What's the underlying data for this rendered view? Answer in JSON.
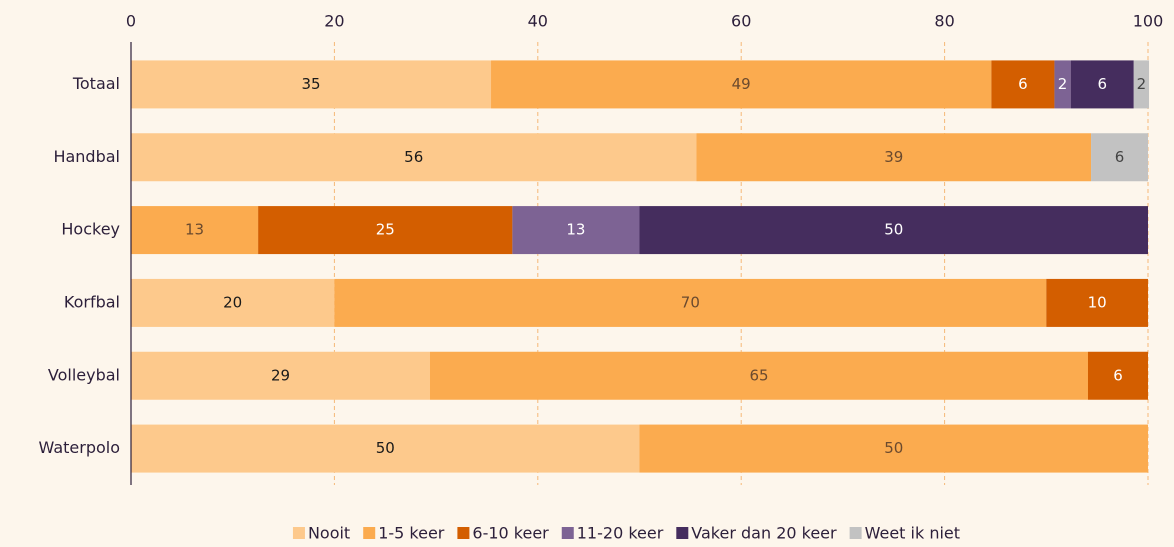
{
  "chart_data": {
    "type": "stacked_barh",
    "categories": [
      "Totaal",
      "Handbal",
      "Hockey",
      "Korfbal",
      "Volleybal",
      "Waterpolo"
    ],
    "series": [
      {
        "name": "Nooit",
        "color": "#fdc98c",
        "label_color": "#1a1a1a",
        "values": [
          35.4,
          55.6,
          null,
          20,
          29.4,
          50
        ],
        "value_labels": [
          "35",
          "56",
          null,
          "20",
          "29",
          "50"
        ]
      },
      {
        "name": "1-5 keer",
        "color": "#fbab4f",
        "label_color": "#6b4a2e",
        "values": [
          49.2,
          38.8,
          12.5,
          70,
          64.7,
          50
        ],
        "value_labels": [
          "49",
          "39",
          "13",
          "70",
          "65",
          "50"
        ]
      },
      {
        "name": "6-10 keer",
        "color": "#d35e00",
        "label_color": "#ffffff",
        "values": [
          6.2,
          null,
          25,
          10,
          5.9,
          null
        ],
        "value_labels": [
          "6",
          null,
          "25",
          "10",
          "6",
          null
        ]
      },
      {
        "name": "11-20 keer",
        "color": "#7d6394",
        "label_color": "#ffffff",
        "values": [
          1.6,
          null,
          12.5,
          null,
          null,
          null
        ],
        "value_labels": [
          "2",
          null,
          "13",
          null,
          null,
          null
        ]
      },
      {
        "name": "Vaker dan 20 keer",
        "color": "#452d5e",
        "label_color": "#ffffff",
        "values": [
          6.2,
          null,
          50,
          null,
          null,
          null
        ],
        "value_labels": [
          "6",
          null,
          "50",
          null,
          null,
          null
        ]
      },
      {
        "name": "Weet ik niet",
        "color": "#c2c2c2",
        "label_color": "#444444",
        "values": [
          1.5,
          5.6,
          null,
          null,
          null,
          null
        ],
        "value_labels": [
          "2",
          "6",
          null,
          null,
          null,
          null
        ]
      }
    ],
    "xlim": [
      0,
      100
    ],
    "xticks": [
      0,
      20,
      40,
      60,
      80,
      100
    ],
    "grid": true,
    "legend": "bottom"
  }
}
